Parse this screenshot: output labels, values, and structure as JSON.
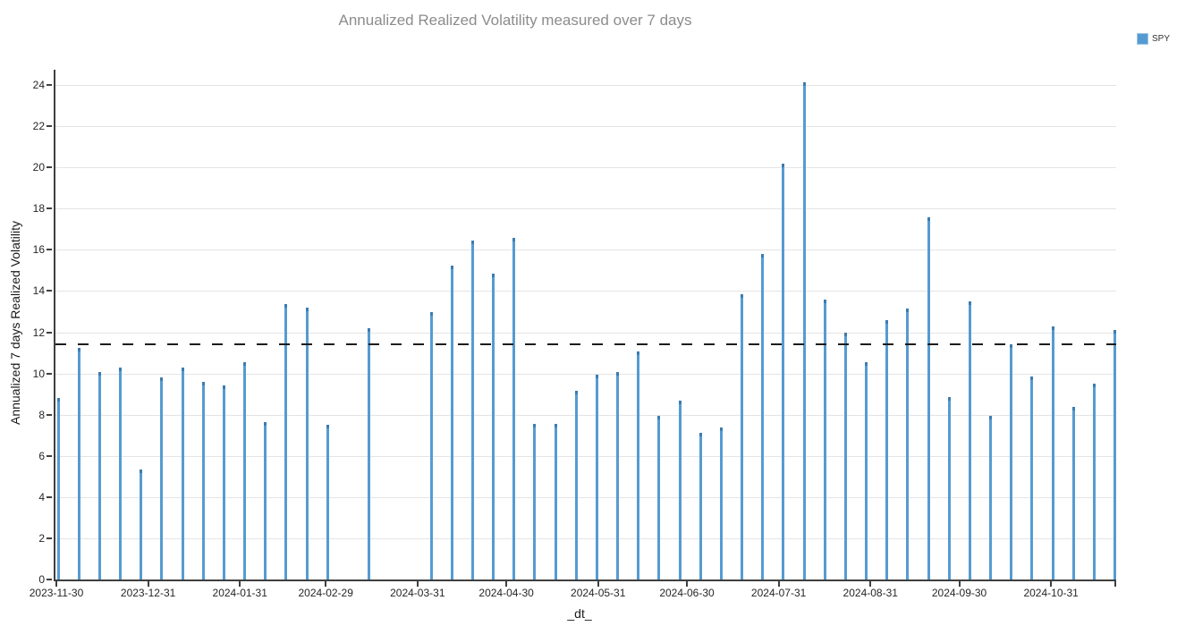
{
  "chart_data": {
    "type": "bar",
    "title": "Annualized Realized Volatility measured over 7 days",
    "xlabel": "_dt_",
    "ylabel": "Annualized 7 days Realized Volatility",
    "legend": [
      {
        "label": "SPY",
        "color": "#559bd2"
      }
    ],
    "grid": "horizontal",
    "legend_position": "top-right",
    "ylim": [
      0,
      24
    ],
    "yticks": [
      0,
      2,
      4,
      6,
      8,
      10,
      12,
      14,
      16,
      18,
      20,
      22,
      24
    ],
    "xticks": [
      "2023-11-30",
      "2023-12-31",
      "2024-01-31",
      "2024-02-29",
      "2024-03-31",
      "2024-04-30",
      "2024-05-31",
      "2024-06-30",
      "2024-07-31",
      "2024-08-31",
      "2024-09-30",
      "2024-10-31"
    ],
    "mean_line_value": 11.41,
    "x": [
      "2023-11-30",
      "2023-12-07",
      "2023-12-14",
      "2023-12-21",
      "2023-12-28",
      "2024-01-04",
      "2024-01-11",
      "2024-01-18",
      "2024-01-25",
      "2024-02-01",
      "2024-02-08",
      "2024-02-15",
      "2024-02-22",
      "2024-02-29",
      "2024-03-14",
      "2024-04-04",
      "2024-04-11",
      "2024-04-18",
      "2024-04-25",
      "2024-05-02",
      "2024-05-09",
      "2024-05-16",
      "2024-05-23",
      "2024-05-30",
      "2024-06-06",
      "2024-06-13",
      "2024-06-20",
      "2024-06-27",
      "2024-07-04",
      "2024-07-11",
      "2024-07-18",
      "2024-07-25",
      "2024-08-01",
      "2024-08-08",
      "2024-08-15",
      "2024-08-22",
      "2024-08-29",
      "2024-09-05",
      "2024-09-12",
      "2024-09-19",
      "2024-09-26",
      "2024-10-03",
      "2024-10-10",
      "2024-10-17",
      "2024-10-24",
      "2024-10-31",
      "2024-11-07",
      "2024-11-14",
      "2024-11-21"
    ],
    "series": [
      {
        "name": "SPY",
        "values": [
          8.8,
          11.25,
          10.05,
          10.3,
          5.35,
          9.8,
          10.3,
          9.6,
          9.4,
          10.55,
          7.65,
          13.35,
          13.2,
          7.5,
          12.2,
          13.0,
          15.25,
          16.45,
          14.85,
          16.6,
          7.55,
          7.55,
          9.15,
          9.95,
          10.05,
          11.05,
          7.95,
          8.7,
          7.1,
          7.4,
          13.85,
          15.8,
          20.2,
          24.15,
          13.6,
          12.0,
          10.55,
          12.6,
          13.15,
          17.6,
          8.85,
          13.5,
          7.95,
          11.4,
          9.85,
          12.3,
          8.4,
          9.5,
          12.1
        ]
      }
    ]
  }
}
